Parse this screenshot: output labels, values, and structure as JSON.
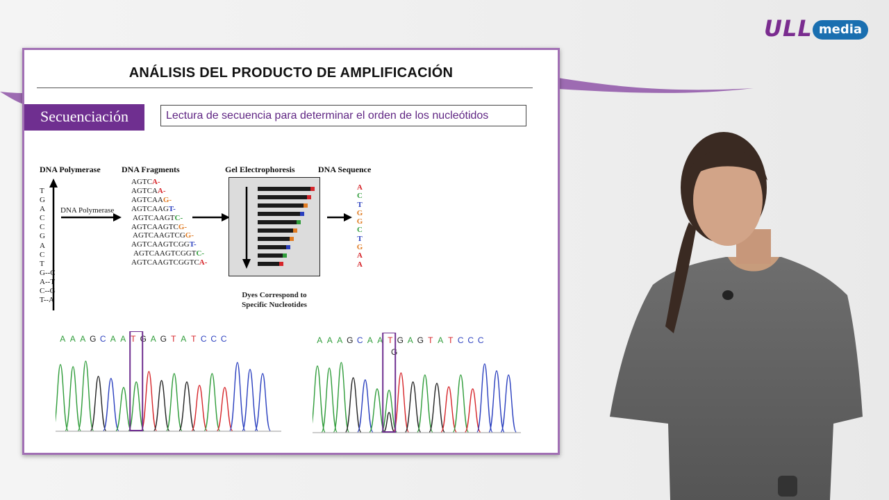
{
  "branding": {
    "logo_left": "ULL",
    "logo_pill": "media"
  },
  "slide": {
    "title": "ANÁLISIS DEL PRODUCTO DE AMPLIFICACIÓN",
    "tag": "Secuenciación",
    "description": "Lectura de secuencia para determinar el orden de los nucleótidos"
  },
  "diagram": {
    "headers": {
      "polymerase": "DNA Polymerase",
      "fragments": "DNA Fragments",
      "gel": "Gel Electrophoresis",
      "sequence": "DNA Sequence"
    },
    "arrow_label": "DNA Polymerase",
    "template_strand": [
      "T",
      "G",
      "A",
      "C",
      "C",
      "G",
      "A",
      "C",
      "T",
      "G--C",
      "A--T",
      "C--G",
      "T--A"
    ],
    "fragments": [
      {
        "prefix": "AGTC",
        "last": "A-",
        "color": "#d6262b"
      },
      {
        "prefix": "AGTCA",
        "last": "A-",
        "color": "#d6262b"
      },
      {
        "prefix": "AGTCAA",
        "last": "G-",
        "color": "#e07b22"
      },
      {
        "prefix": "AGTCAAG",
        "last": "T-",
        "color": "#2a3fbf"
      },
      {
        "prefix": "AGTCAAGT",
        "last": "C-",
        "color": "#2f9c3a"
      },
      {
        "prefix": "AGTCAAGTC",
        "last": "G-",
        "color": "#e07b22"
      },
      {
        "prefix": "AGTCAAGTCG",
        "last": "G-",
        "color": "#e07b22"
      },
      {
        "prefix": "AGTCAAGTCGG",
        "last": "T-",
        "color": "#2a3fbf"
      },
      {
        "prefix": "AGTCAAGTCGGT",
        "last": "C-",
        "color": "#2f9c3a"
      },
      {
        "prefix": "AGTCAAGTCGGTC",
        "last": "A-",
        "color": "#d6262b"
      }
    ],
    "sequence": [
      {
        "b": "A",
        "color": "#d6262b"
      },
      {
        "b": "C",
        "color": "#2f9c3a"
      },
      {
        "b": "T",
        "color": "#2a3fbf"
      },
      {
        "b": "G",
        "color": "#e07b22"
      },
      {
        "b": "G",
        "color": "#e07b22"
      },
      {
        "b": "C",
        "color": "#2f9c3a"
      },
      {
        "b": "T",
        "color": "#2a3fbf"
      },
      {
        "b": "G",
        "color": "#e07b22"
      },
      {
        "b": "A",
        "color": "#d6262b"
      },
      {
        "b": "A",
        "color": "#d6262b"
      }
    ],
    "caption": [
      "Dyes Correspond to",
      "Specific Nucleotides"
    ]
  },
  "chromatograms": {
    "bases": [
      "A",
      "A",
      "A",
      "G",
      "C",
      "A",
      "A",
      "T",
      "G",
      "A",
      "G",
      "T",
      "A",
      "T",
      "C",
      "C",
      "C"
    ],
    "colors": {
      "A": "#2f9c3a",
      "C": "#2a3fbf",
      "G": "#222222",
      "T": "#d6262b"
    },
    "highlight_index": 6,
    "variant_base": "G"
  }
}
